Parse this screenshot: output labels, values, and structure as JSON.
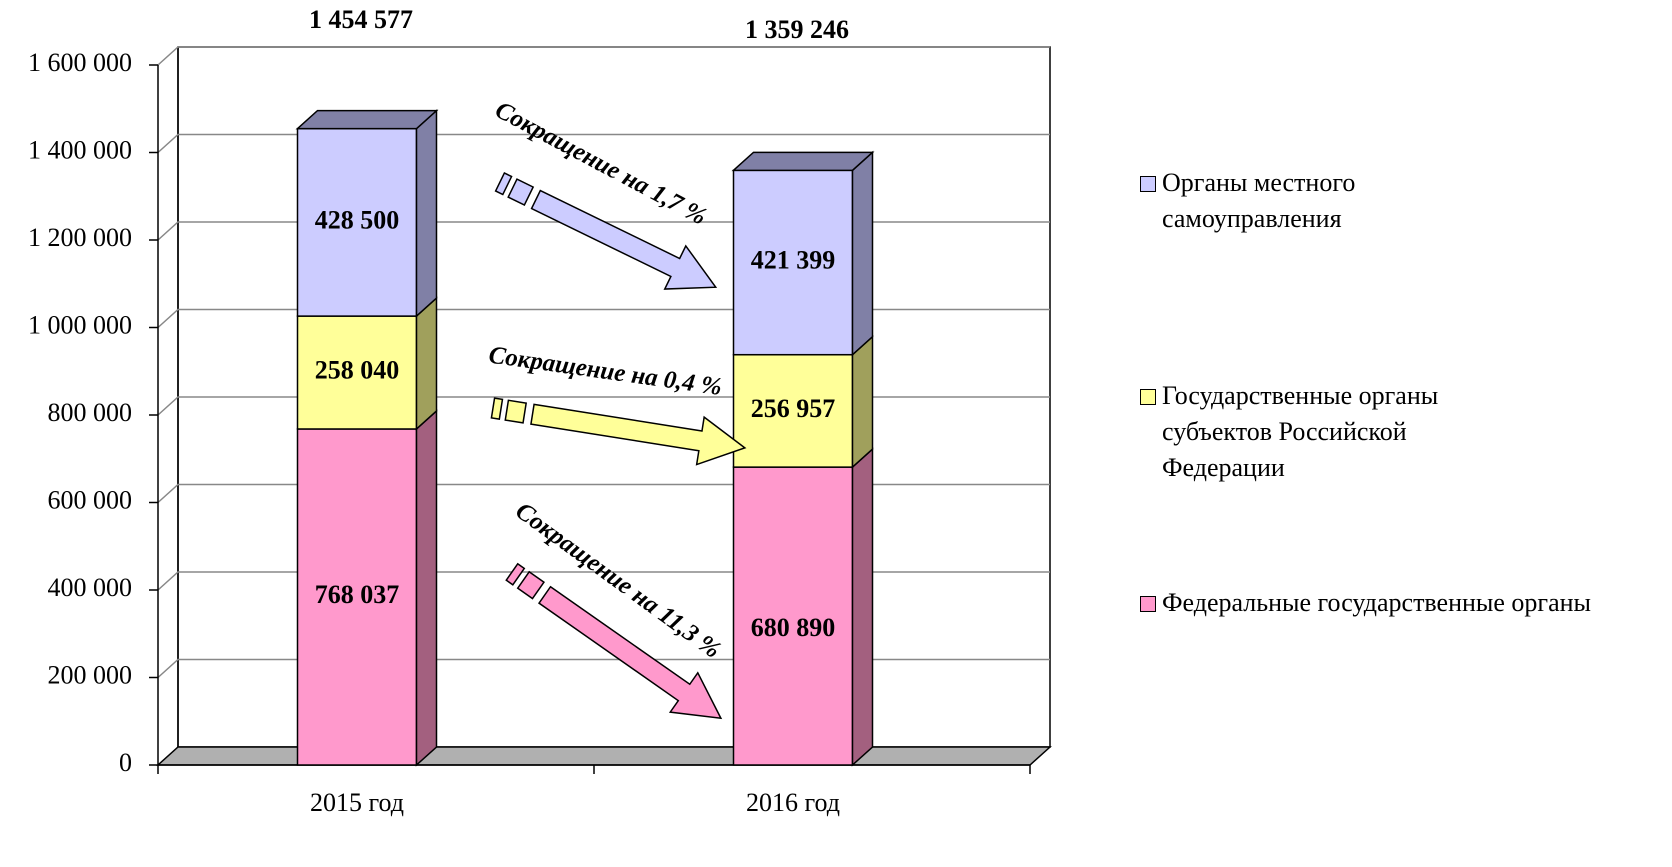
{
  "chart_data": {
    "type": "stacked-bar-3d",
    "categories": [
      "2015 год",
      "2016 год"
    ],
    "series": [
      {
        "name": "Федеральные государственные органы",
        "color": "#ff99cc",
        "side": "#a3607f",
        "values": [
          768037,
          680890
        ],
        "value_labels": [
          "768 037",
          "680 890"
        ]
      },
      {
        "name": "Государственные органы субъектов Российской Федерации",
        "color": "#ffff99",
        "side": "#a0a05c",
        "values": [
          258040,
          256957
        ],
        "value_labels": [
          "258 040",
          "256 957"
        ]
      },
      {
        "name": "Органы местного самоуправления",
        "color": "#ccccff",
        "side": "#8080a6",
        "values": [
          428500,
          421399
        ],
        "value_labels": [
          "428 500",
          "421 399"
        ]
      }
    ],
    "totals": {
      "values": [
        1454577,
        1359246
      ],
      "value_labels": [
        "1 454 577",
        "1 359 246"
      ]
    },
    "annotations": [
      "Сокращение на 1,7 %",
      "Сокращение на 0,4 %",
      "Сокращение на 11,3 %"
    ],
    "ylim": [
      0,
      1600000
    ],
    "yticks": [
      0,
      {
        "value": 200000,
        "label": "200 000"
      },
      {
        "value": 400000,
        "label": "400 000"
      },
      {
        "value": 600000,
        "label": "600 000"
      },
      {
        "value": 800000,
        "label": "800 000"
      },
      {
        "value": 1000000,
        "label": "1 000 000"
      },
      {
        "value": 1200000,
        "label": "1 200 000"
      },
      {
        "value": 1400000,
        "label": "1 400 000"
      },
      {
        "value": 1600000,
        "label": "1 600 000"
      }
    ],
    "grid": true,
    "legend": "right"
  }
}
